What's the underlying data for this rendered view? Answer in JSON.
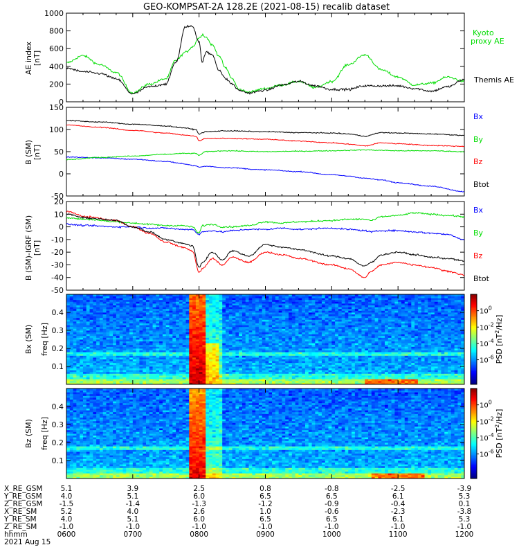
{
  "title": "GEO-KOMPSAT-2A 128.2E (2021-08-15) recalib dataset",
  "colors": {
    "black": "#000000",
    "red": "#ff0000",
    "green": "#00dd00",
    "blue": "#0000ff"
  },
  "chart_data": [
    {
      "type": "line",
      "panel": "ae",
      "ylabel": "AE index [nT]",
      "ylim": [
        0,
        1000
      ],
      "yticks": [
        "0",
        "200",
        "400",
        "600",
        "800",
        "1000"
      ],
      "x": [
        0.0,
        0.25,
        0.5,
        0.75,
        1.0,
        1.25,
        1.5,
        1.65,
        1.8,
        1.9,
        2.0,
        2.05,
        2.1,
        2.2,
        2.3,
        2.4,
        2.5,
        2.6,
        2.75,
        3.0,
        3.25,
        3.5,
        3.75,
        4.0,
        4.25,
        4.5,
        4.75,
        5.0,
        5.25,
        5.5,
        5.75,
        6.0
      ],
      "series": [
        {
          "name": "Kyoto proxy AE",
          "color": "green",
          "values": [
            440,
            520,
            420,
            330,
            100,
            200,
            260,
            470,
            560,
            620,
            720,
            760,
            730,
            640,
            520,
            380,
            260,
            140,
            110,
            150,
            190,
            230,
            160,
            230,
            420,
            530,
            360,
            280,
            190,
            210,
            280,
            230
          ]
        },
        {
          "name": "Themis AE",
          "color": "black",
          "values": [
            380,
            340,
            320,
            260,
            90,
            170,
            200,
            450,
            850,
            850,
            680,
            440,
            560,
            530,
            360,
            260,
            200,
            130,
            100,
            130,
            190,
            230,
            180,
            140,
            140,
            180,
            180,
            180,
            150,
            120,
            170,
            250
          ]
        }
      ]
    },
    {
      "type": "line",
      "panel": "b_sm",
      "ylabel": "B (SM) [nT]",
      "ylim": [
        -50,
        150
      ],
      "yticks": [
        "-50",
        "0",
        "50",
        "100",
        "150"
      ],
      "x": [
        0.0,
        0.5,
        1.0,
        1.5,
        1.75,
        1.95,
        2.0,
        2.1,
        2.4,
        3.0,
        3.5,
        4.0,
        4.25,
        4.5,
        4.75,
        5.0,
        5.5,
        6.0
      ],
      "series": [
        {
          "name": "Bx",
          "color": "blue",
          "values": [
            38,
            36,
            33,
            28,
            23,
            18,
            15,
            17,
            14,
            9,
            5,
            -2,
            -5,
            -10,
            -14,
            -20,
            -28,
            -40
          ]
        },
        {
          "name": "By",
          "color": "green",
          "values": [
            32,
            37,
            40,
            44,
            46,
            46,
            42,
            50,
            52,
            50,
            51,
            52,
            53,
            54,
            53,
            52,
            52,
            50
          ]
        },
        {
          "name": "Bz",
          "color": "red",
          "values": [
            110,
            105,
            98,
            92,
            88,
            85,
            75,
            80,
            80,
            78,
            74,
            70,
            67,
            63,
            70,
            68,
            64,
            62
          ]
        },
        {
          "name": "Btot",
          "color": "black",
          "values": [
            120,
            117,
            112,
            108,
            104,
            100,
            90,
            95,
            97,
            95,
            93,
            92,
            90,
            85,
            93,
            92,
            90,
            87
          ]
        }
      ]
    },
    {
      "type": "line",
      "panel": "db_sm",
      "ylabel": "B (SM)-IGRF (SM) [nT]",
      "ylim": [
        -50,
        20
      ],
      "yticks": [
        "-50",
        "-40",
        "-30",
        "-20",
        "-10",
        "0",
        "10",
        "20"
      ],
      "x": [
        0.0,
        0.3,
        0.75,
        1.0,
        1.25,
        1.5,
        1.75,
        1.9,
        2.0,
        2.05,
        2.2,
        2.35,
        2.5,
        2.75,
        3.0,
        3.25,
        3.5,
        4.0,
        4.25,
        4.5,
        4.6,
        4.75,
        5.0,
        5.25,
        5.5,
        5.75,
        6.0
      ],
      "series": [
        {
          "name": "Bx",
          "color": "blue",
          "values": [
            2,
            1,
            0,
            0,
            -1,
            -1,
            -2,
            -2,
            -6,
            -4,
            -3,
            -4,
            -3,
            -2,
            -2,
            -1,
            -2,
            -1,
            -2,
            -3,
            -4,
            -3,
            -3,
            -4,
            -5,
            -6,
            -10
          ]
        },
        {
          "name": "By",
          "color": "green",
          "values": [
            7,
            6,
            4,
            3,
            2,
            1,
            1,
            0,
            -5,
            1,
            2,
            0,
            0,
            1,
            4,
            3,
            4,
            5,
            6,
            6,
            5,
            8,
            9,
            11,
            10,
            9,
            8
          ]
        },
        {
          "name": "Bz",
          "color": "red",
          "values": [
            12,
            8,
            5,
            0,
            -5,
            -12,
            -16,
            -19,
            -36,
            -33,
            -25,
            -30,
            -24,
            -28,
            -20,
            -22,
            -25,
            -30,
            -33,
            -40,
            -35,
            -30,
            -28,
            -30,
            -32,
            -35,
            -38
          ]
        },
        {
          "name": "Btot",
          "color": "black",
          "values": [
            10,
            7,
            5,
            0,
            -4,
            -10,
            -13,
            -15,
            -32,
            -28,
            -20,
            -26,
            -19,
            -23,
            -14,
            -16,
            -18,
            -23,
            -25,
            -31,
            -28,
            -22,
            -20,
            -22,
            -24,
            -25,
            -27
          ]
        }
      ]
    },
    {
      "type": "heatmap",
      "panel": "bx_spec",
      "ylabel": "Bx (SM) freq [Hz]",
      "ylim": [
        0.0,
        0.5
      ],
      "yticks": [
        "0.1",
        "0.2",
        "0.3",
        "0.4"
      ],
      "colorbar_label": "PSD [nT2/Hz]",
      "colorbar_range_log10": [
        -9,
        2
      ],
      "colorbar_ticks": [
        {
          "base": "10",
          "exp": "0",
          "v": 0
        },
        {
          "base": "10",
          "exp": "-2",
          "v": -2
        },
        {
          "base": "10",
          "exp": "-4",
          "v": -4
        },
        {
          "base": "10",
          "exp": "-6",
          "v": -6
        }
      ],
      "features": {
        "burst_hours": [
          1.87,
          2.1
        ],
        "burst_peak_log10": 1.2,
        "burst_extension_freq_max_hz": 0.23,
        "line_freq_hz": 0.17,
        "late_low_freq_hours": [
          4.5,
          5.3
        ]
      }
    },
    {
      "type": "heatmap",
      "panel": "bz_spec",
      "ylabel": "Bz (SM) freq [Hz]",
      "ylim": [
        0.0,
        0.5
      ],
      "yticks": [
        "0.1",
        "0.2",
        "0.3",
        "0.4"
      ],
      "colorbar_label": "PSD [nT2/Hz]",
      "colorbar_range_log10": [
        -9,
        2
      ],
      "colorbar_ticks": [
        {
          "base": "10",
          "exp": "0",
          "v": 0
        },
        {
          "base": "10",
          "exp": "-2",
          "v": -2
        },
        {
          "base": "10",
          "exp": "-4",
          "v": -4
        },
        {
          "base": "10",
          "exp": "-6",
          "v": -6
        }
      ],
      "features": {
        "burst_hours": [
          1.87,
          2.1
        ],
        "burst_peak_log10": 0.8,
        "line_freq_hz": 0.17,
        "late_low_freq_hours": [
          4.6,
          5.4
        ]
      }
    }
  ],
  "legends": {
    "ae": {
      "kyoto_line1": "Kyoto",
      "kyoto_line2": "proxy AE",
      "themis": "Themis AE"
    },
    "b_sm": {
      "bx": "Bx",
      "by": "By",
      "bz": "Bz",
      "btot": "Btot"
    },
    "db_sm": {
      "bx": "Bx",
      "by": "By",
      "bz": "Bz",
      "btot": "Btot"
    }
  },
  "ylabels": {
    "ae": {
      "line1": "AE index",
      "line2": "[nT]"
    },
    "b_sm": {
      "line1": "B (SM)",
      "line2": "[nT]"
    },
    "db_sm": {
      "line1": "B (SM)-IGRF (SM)",
      "line2": "[nT]"
    },
    "bx_spec": {
      "line1": "Bx (SM)",
      "line2": "freq [Hz]"
    },
    "bz_spec": {
      "line1": "Bz (SM)",
      "line2": "freq [Hz]"
    }
  },
  "colorbar_label": {
    "prefix": "PSD [nT",
    "sup": "2",
    "suffix": "/Hz]"
  },
  "orbit_table": {
    "row_labels": [
      "X_RE_GSM",
      "Y_RE_GSM",
      "Z_RE_GSM",
      "X_RE_SM",
      "Y_RE_SM",
      "Z_RE_SM",
      "hhmm"
    ],
    "columns": [
      [
        "5.1",
        "4.0",
        "-1.5",
        "5.2",
        "4.0",
        "-1.0",
        "0600"
      ],
      [
        "3.9",
        "5.1",
        "-1.4",
        "4.0",
        "5.1",
        "-1.0",
        "0700"
      ],
      [
        "2.5",
        "6.0",
        "-1.3",
        "2.6",
        "6.0",
        "-1.0",
        "0800"
      ],
      [
        "0.8",
        "6.5",
        "-1.2",
        "1.0",
        "6.5",
        "-1.0",
        "0900"
      ],
      [
        "-0.8",
        "6.5",
        "-0.9",
        "-0.6",
        "6.5",
        "-1.0",
        "1000"
      ],
      [
        "-2.5",
        "6.1",
        "-0.4",
        "-2.3",
        "6.1",
        "-1.0",
        "1100"
      ],
      [
        "-3.9",
        "5.3",
        "0.1",
        "-3.8",
        "5.3",
        "-1.0",
        "1200"
      ]
    ],
    "date": "2021 Aug 15"
  }
}
